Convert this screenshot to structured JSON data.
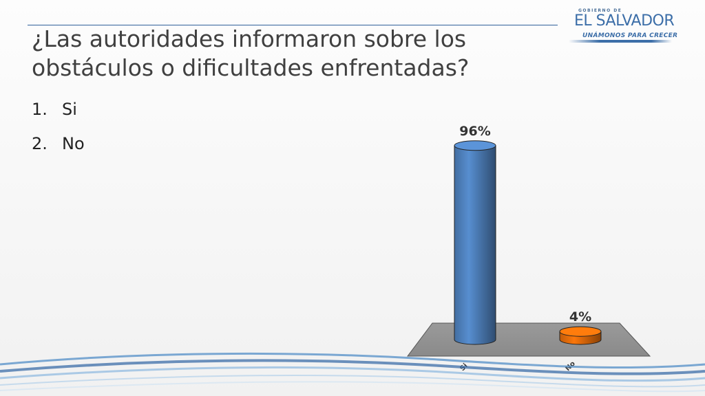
{
  "slide": {
    "title": "¿Las autoridades informaron sobre los obstáculos o dificultades enfrentadas?",
    "options": [
      {
        "number": "1.",
        "label": "Si"
      },
      {
        "number": "2.",
        "label": "No"
      }
    ]
  },
  "logo": {
    "small_text": "GOBIERNO DE",
    "name": "EL SALVADOR",
    "tagline": "UNÁMONOS PARA CRECER",
    "color": "#3c6ea8"
  },
  "chart_data": {
    "type": "bar",
    "style": "3d-cylinder",
    "categories": [
      "Si",
      "No"
    ],
    "values": [
      96,
      4
    ],
    "data_labels": [
      "96%",
      "4%"
    ],
    "colors": [
      "#4f81bd",
      "#e46c0a"
    ],
    "ylim": [
      0,
      100
    ],
    "grid": false,
    "legend": "none"
  }
}
